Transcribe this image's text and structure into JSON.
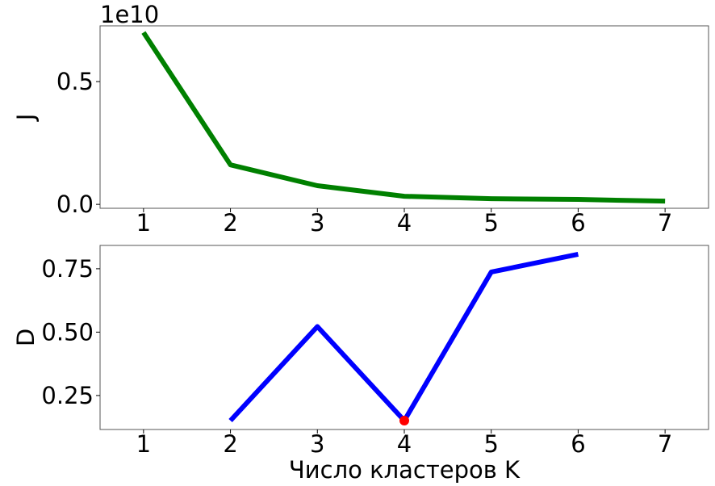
{
  "chart_data": [
    {
      "type": "line",
      "ylabel": "J",
      "offset_text": "1e10",
      "x": [
        1,
        2,
        3,
        4,
        5,
        6,
        7
      ],
      "series": [
        {
          "color": "#008000",
          "values": [
            0.7,
            0.161,
            0.076,
            0.033,
            0.023,
            0.02,
            0.013
          ]
        }
      ],
      "xlim": [
        0.5,
        7.5
      ],
      "xticks": [
        1,
        2,
        3,
        4,
        5,
        6,
        7
      ],
      "ylim": [
        -0.016,
        0.727
      ],
      "yticks": [
        {
          "value": 0,
          "label": "0.0"
        },
        0.5
      ]
    },
    {
      "type": "line",
      "ylabel": "D",
      "xlabel": "Число кластеров K",
      "x": [
        1,
        2,
        3,
        4,
        5,
        6,
        7
      ],
      "series": [
        {
          "color": "#0000ff",
          "values": [
            null,
            0.151,
            0.522,
            0.151,
            0.737,
            0.807,
            null
          ]
        }
      ],
      "highlight": {
        "x": 4,
        "y": 0.151,
        "color": "#ff0000"
      },
      "xlim": [
        0.5,
        7.5
      ],
      "xticks": [
        1,
        2,
        3,
        4,
        5,
        6,
        7
      ],
      "ylim": [
        0.116,
        0.842
      ],
      "yticks": [
        0.25,
        {
          "value": 0.5,
          "label": "0.50"
        },
        0.75
      ]
    }
  ]
}
